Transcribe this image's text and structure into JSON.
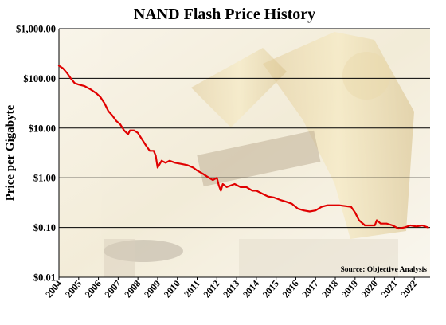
{
  "chart_data": {
    "type": "line",
    "title": "NAND Flash Price History",
    "ylabel": "Price per Gigabyte",
    "xlabel": "",
    "yscale": "log",
    "ylim": [
      0.01,
      1000
    ],
    "xlim": [
      2004,
      2022.8
    ],
    "grid": "horizontal",
    "y_ticks": [
      {
        "value": 1000,
        "label": "$1,000.00"
      },
      {
        "value": 100,
        "label": "$100.00"
      },
      {
        "value": 10,
        "label": "$10.00"
      },
      {
        "value": 1,
        "label": "$1.00"
      },
      {
        "value": 0.1,
        "label": "$0.10"
      },
      {
        "value": 0.01,
        "label": "$0.01"
      }
    ],
    "x_ticks": [
      "2004",
      "2005",
      "2006",
      "2007",
      "2008",
      "2009",
      "2010",
      "2011",
      "2012",
      "2013",
      "2014",
      "2015",
      "2016",
      "2017",
      "2018",
      "2019",
      "2020",
      "2021",
      "2022"
    ],
    "annotation": "Source: Objective Analysis",
    "series": [
      {
        "color": "#e00000",
        "x": [
          2004.0,
          2004.2,
          2004.4,
          2004.6,
          2004.8,
          2005.0,
          2005.3,
          2005.6,
          2005.9,
          2006.1,
          2006.3,
          2006.5,
          2006.7,
          2006.9,
          2007.1,
          2007.3,
          2007.5,
          2007.6,
          2007.8,
          2008.0,
          2008.2,
          2008.4,
          2008.6,
          2008.8,
          2008.9,
          2009.0,
          2009.2,
          2009.4,
          2009.6,
          2009.9,
          2010.2,
          2010.5,
          2010.8,
          2011.0,
          2011.3,
          2011.6,
          2011.8,
          2012.0,
          2012.1,
          2012.2,
          2012.3,
          2012.5,
          2012.7,
          2012.9,
          2013.2,
          2013.5,
          2013.8,
          2014.0,
          2014.3,
          2014.6,
          2014.9,
          2015.2,
          2015.5,
          2015.8,
          2016.1,
          2016.4,
          2016.7,
          2017.0,
          2017.3,
          2017.6,
          2017.9,
          2018.2,
          2018.5,
          2018.8,
          2019.0,
          2019.2,
          2019.5,
          2019.8,
          2020.0,
          2020.1,
          2020.3,
          2020.6,
          2020.9,
          2021.2,
          2021.5,
          2021.8,
          2022.1,
          2022.4,
          2022.7
        ],
        "y": [
          180,
          160,
          130,
          100,
          80,
          75,
          70,
          60,
          50,
          42,
          32,
          22,
          18,
          14,
          12,
          9,
          7.5,
          9,
          9,
          8,
          6,
          4.5,
          3.5,
          3.5,
          2.8,
          1.6,
          2.2,
          2.0,
          2.2,
          2.0,
          1.9,
          1.8,
          1.6,
          1.4,
          1.2,
          1.0,
          0.9,
          1.0,
          0.7,
          0.55,
          0.75,
          0.65,
          0.7,
          0.75,
          0.65,
          0.65,
          0.55,
          0.55,
          0.48,
          0.42,
          0.4,
          0.36,
          0.33,
          0.3,
          0.24,
          0.22,
          0.21,
          0.22,
          0.26,
          0.28,
          0.28,
          0.28,
          0.27,
          0.26,
          0.2,
          0.14,
          0.11,
          0.11,
          0.11,
          0.14,
          0.12,
          0.12,
          0.11,
          0.095,
          0.1,
          0.11,
          0.105,
          0.11,
          0.1
        ]
      }
    ]
  }
}
